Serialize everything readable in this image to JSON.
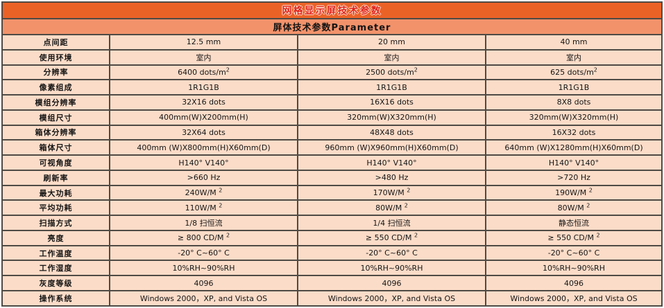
{
  "colors": {
    "title_bg": "#eb6227",
    "title_text": "#e0241a",
    "subtitle_bg": "#f2926b",
    "cell_bg": "#fbdcc8",
    "border": "#4e4a45",
    "page_bg": "#ffffff"
  },
  "table": {
    "title": "网格显示屏技术参数",
    "subtitle": "屏体技术参数Parameter",
    "rows": [
      {
        "label": "点间距",
        "values": [
          "12.5 mm",
          "20 mm",
          "40 mm"
        ]
      },
      {
        "label": "使用环境",
        "values": [
          "室内",
          "室内",
          "室内"
        ]
      },
      {
        "label": "分辨率",
        "values": [
          "6400 dots/m^2",
          "2500 dots/m^2",
          "625 dots/m^2"
        ]
      },
      {
        "label": "像素组成",
        "values": [
          "1R1G1B",
          "1R1G1B",
          "1R1G1B"
        ]
      },
      {
        "label": "模组分辨率",
        "values": [
          "32X16 dots",
          "16X16 dots",
          "8X8 dots"
        ]
      },
      {
        "label": "模组尺寸",
        "values": [
          "400mm(W)X200mm(H)",
          "320mm(W)X320mm(H)",
          "320mm(W)X320mm(H)"
        ]
      },
      {
        "label": "箱体分辨率",
        "values": [
          "32X64 dots",
          "48X48 dots",
          "16X32 dots"
        ]
      },
      {
        "label": "箱体尺寸",
        "values": [
          "400mm (W)X800mm(H)X60mm(D)",
          "960mm (W)X960mm(H)X60mm(D)",
          "640mm (W)X1280mm(H)X60mm(D)"
        ]
      },
      {
        "label": "可视角度",
        "values": [
          "H140°  V140°",
          "H140°  V140°",
          "H140°  V140°"
        ]
      },
      {
        "label": "刷新率",
        "values": [
          ">660 Hz",
          ">480 Hz",
          ">720 Hz"
        ]
      },
      {
        "label": "最大功耗",
        "values": [
          "240W/M ^2",
          "170W/M ^2",
          "190W/M ^2"
        ]
      },
      {
        "label": "平均功耗",
        "values": [
          "110W/M ^2",
          "80W/M ^2",
          "80W/M ^2"
        ]
      },
      {
        "label": "扫描方式",
        "values": [
          "1/8 扫恒流",
          "1/4 扫恒流",
          "静态恒流"
        ]
      },
      {
        "label": "亮度",
        "values": [
          "≥ 800 CD/M ^2",
          "≥ 550 CD/M ^2",
          "≥ 550 CD/M ^2"
        ]
      },
      {
        "label": "工作温度",
        "values": [
          "-20° C~60° C",
          "-20° C~60° C",
          "-20° C~60° C"
        ]
      },
      {
        "label": "工作湿度",
        "values": [
          "10%RH~90%RH",
          "10%RH~90%RH",
          "10%RH~90%RH"
        ]
      },
      {
        "label": "灰度等级",
        "values": [
          "4096",
          "4096",
          "4096"
        ]
      },
      {
        "label": "操作系统",
        "values": [
          "Windows 2000，XP, and Vista OS",
          "Windows 2000，XP, and Vista OS",
          "Windows 2000，XP, and Vista OS"
        ]
      }
    ]
  }
}
